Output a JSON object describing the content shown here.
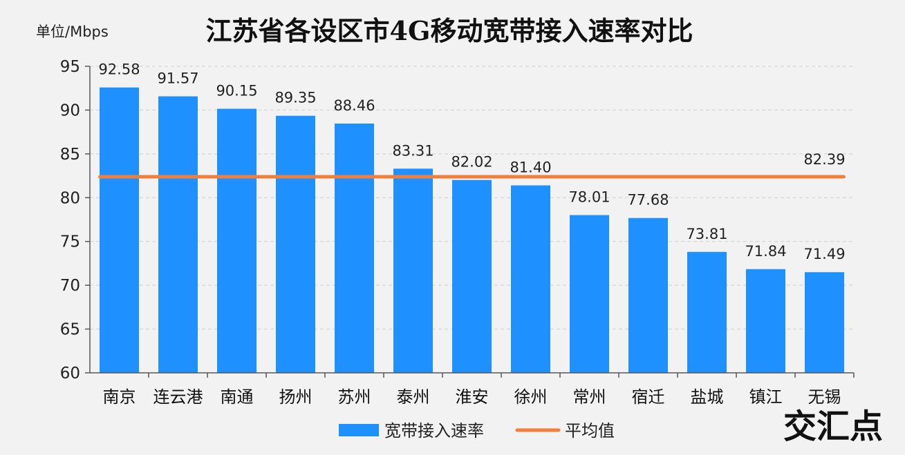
{
  "chart_data": {
    "type": "bar",
    "title": "江苏省各设区市4G移动宽带接入速率对比",
    "unit_label": "单位/Mbps",
    "categories": [
      "南京",
      "连云港",
      "南通",
      "扬州",
      "苏州",
      "泰州",
      "淮安",
      "徐州",
      "常州",
      "宿迁",
      "盐城",
      "镇江",
      "无锡"
    ],
    "series": [
      {
        "name": "宽带接入速率",
        "type": "bar",
        "color": "#1e90ff",
        "values": [
          92.58,
          91.57,
          90.15,
          89.35,
          88.46,
          83.31,
          82.02,
          81.4,
          78.01,
          77.68,
          73.81,
          71.84,
          71.49
        ],
        "labels": [
          "92.58",
          "91.57",
          "90.15",
          "89.35",
          "88.46",
          "83.31",
          "82.02",
          "81.40",
          "78.01",
          "77.68",
          "73.81",
          "71.84",
          "71.49"
        ]
      },
      {
        "name": "平均值",
        "type": "line",
        "color": "#f07f3c",
        "value": 82.39,
        "label": "82.39"
      }
    ],
    "ylim": [
      60,
      95
    ],
    "yticks": [
      "60",
      "65",
      "70",
      "75",
      "80",
      "85",
      "90",
      "95"
    ],
    "grid": true,
    "legend": "bottom"
  },
  "watermark": "交汇点"
}
